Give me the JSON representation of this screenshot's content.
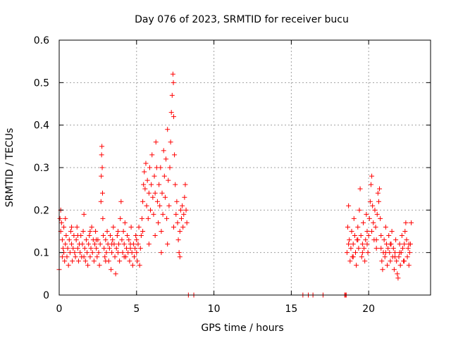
{
  "chart_data": {
    "type": "scatter",
    "title": "Day 076 of 2023, SRMTID for receiver bucu",
    "xlabel": "GPS time / hours",
    "ylabel": "SRMTID / TECUs",
    "xlim": [
      0,
      24
    ],
    "ylim": [
      0,
      0.6
    ],
    "xticks": [
      0,
      5,
      10,
      15,
      20
    ],
    "yticks": [
      0,
      0.1,
      0.2,
      0.3,
      0.4,
      0.5,
      0.6
    ],
    "xtick_labels": [
      "0",
      "5",
      "10",
      "15",
      "20"
    ],
    "ytick_labels": [
      "0",
      "0.1",
      "0.2",
      "0.3",
      "0.4",
      "0.5",
      "0.6"
    ],
    "grid": true,
    "marker": "+",
    "color": "#ff0000",
    "series": [
      {
        "name": "bucu",
        "points": [
          [
            0.0,
            0.06
          ],
          [
            0.05,
            0.18
          ],
          [
            0.1,
            0.15
          ],
          [
            0.1,
            0.2
          ],
          [
            0.15,
            0.17
          ],
          [
            0.2,
            0.13
          ],
          [
            0.2,
            0.09
          ],
          [
            0.25,
            0.11
          ],
          [
            0.3,
            0.16
          ],
          [
            0.3,
            0.1
          ],
          [
            0.35,
            0.08
          ],
          [
            0.4,
            0.12
          ],
          [
            0.45,
            0.14
          ],
          [
            0.5,
            0.09
          ],
          [
            0.55,
            0.11
          ],
          [
            0.6,
            0.07
          ],
          [
            0.65,
            0.13
          ],
          [
            0.7,
            0.1
          ],
          [
            0.75,
            0.15
          ],
          [
            0.8,
            0.12
          ],
          [
            0.85,
            0.08
          ],
          [
            0.9,
            0.11
          ],
          [
            0.95,
            0.14
          ],
          [
            1.0,
            0.1
          ],
          [
            1.05,
            0.09
          ],
          [
            1.1,
            0.13
          ],
          [
            1.15,
            0.16
          ],
          [
            1.2,
            0.11
          ],
          [
            1.25,
            0.08
          ],
          [
            1.3,
            0.12
          ],
          [
            1.35,
            0.1
          ],
          [
            1.4,
            0.14
          ],
          [
            1.45,
            0.09
          ],
          [
            1.5,
            0.12
          ],
          [
            1.55,
            0.15
          ],
          [
            1.6,
            0.19
          ],
          [
            1.65,
            0.11
          ],
          [
            1.7,
            0.08
          ],
          [
            1.75,
            0.13
          ],
          [
            1.8,
            0.1
          ],
          [
            1.85,
            0.07
          ],
          [
            1.9,
            0.12
          ],
          [
            1.95,
            0.14
          ],
          [
            2.0,
            0.09
          ],
          [
            2.05,
            0.11
          ],
          [
            2.1,
            0.16
          ],
          [
            2.15,
            0.1
          ],
          [
            2.2,
            0.13
          ],
          [
            2.25,
            0.08
          ],
          [
            2.3,
            0.12
          ],
          [
            2.35,
            0.15
          ],
          [
            2.4,
            0.11
          ],
          [
            2.45,
            0.09
          ],
          [
            2.5,
            0.13
          ],
          [
            2.55,
            0.1
          ],
          [
            2.6,
            0.07
          ],
          [
            2.65,
            0.12
          ],
          [
            2.7,
            0.22
          ],
          [
            2.72,
            0.28
          ],
          [
            2.74,
            0.33
          ],
          [
            2.76,
            0.35
          ],
          [
            2.78,
            0.3
          ],
          [
            2.8,
            0.24
          ],
          [
            2.82,
            0.18
          ],
          [
            2.85,
            0.14
          ],
          [
            2.9,
            0.11
          ],
          [
            2.95,
            0.09
          ],
          [
            3.0,
            0.13
          ],
          [
            3.05,
            0.1
          ],
          [
            3.1,
            0.15
          ],
          [
            3.15,
            0.12
          ],
          [
            3.2,
            0.08
          ],
          [
            3.25,
            0.11
          ],
          [
            3.3,
            0.14
          ],
          [
            3.35,
            0.06
          ],
          [
            3.4,
            0.1
          ],
          [
            3.45,
            0.13
          ],
          [
            3.5,
            0.16
          ],
          [
            3.55,
            0.12
          ],
          [
            3.6,
            0.09
          ],
          [
            3.65,
            0.05
          ],
          [
            3.7,
            0.11
          ],
          [
            3.75,
            0.14
          ],
          [
            3.8,
            0.1
          ],
          [
            3.85,
            0.12
          ],
          [
            3.9,
            0.08
          ],
          [
            3.95,
            0.18
          ],
          [
            4.0,
            0.22
          ],
          [
            4.05,
            0.13
          ],
          [
            4.1,
            0.1
          ],
          [
            4.15,
            0.15
          ],
          [
            4.2,
            0.12
          ],
          [
            4.25,
            0.17
          ],
          [
            4.3,
            0.09
          ],
          [
            4.35,
            0.11
          ],
          [
            4.4,
            0.14
          ],
          [
            4.45,
            0.1
          ],
          [
            4.5,
            0.13
          ],
          [
            4.55,
            0.08
          ],
          [
            4.6,
            0.12
          ],
          [
            4.65,
            0.16
          ],
          [
            4.7,
            0.1
          ],
          [
            4.75,
            0.07
          ],
          [
            4.8,
            0.12
          ],
          [
            4.85,
            0.09
          ],
          [
            4.9,
            0.11
          ],
          [
            4.95,
            0.14
          ],
          [
            5.0,
            0.1
          ],
          [
            5.05,
            0.08
          ],
          [
            5.1,
            0.12
          ],
          [
            5.15,
            0.16
          ],
          [
            5.2,
            0.07
          ],
          [
            5.25,
            0.11
          ],
          [
            5.3,
            0.14
          ],
          [
            5.35,
            0.18
          ],
          [
            5.4,
            0.22
          ],
          [
            5.45,
            0.26
          ],
          [
            5.5,
            0.29
          ],
          [
            5.55,
            0.25
          ],
          [
            5.6,
            0.31
          ],
          [
            5.65,
            0.21
          ],
          [
            5.7,
            0.27
          ],
          [
            5.75,
            0.18
          ],
          [
            5.8,
            0.24
          ],
          [
            5.85,
            0.3
          ],
          [
            5.9,
            0.2
          ],
          [
            5.95,
            0.26
          ],
          [
            6.0,
            0.33
          ],
          [
            6.05,
            0.23
          ],
          [
            6.1,
            0.19
          ],
          [
            6.15,
            0.28
          ],
          [
            6.2,
            0.24
          ],
          [
            6.25,
            0.36
          ],
          [
            6.3,
            0.3
          ],
          [
            6.35,
            0.22
          ],
          [
            6.4,
            0.17
          ],
          [
            6.45,
            0.26
          ],
          [
            6.5,
            0.21
          ],
          [
            6.55,
            0.3
          ],
          [
            6.6,
            0.15
          ],
          [
            6.65,
            0.24
          ],
          [
            6.7,
            0.19
          ],
          [
            6.75,
            0.34
          ],
          [
            6.8,
            0.28
          ],
          [
            6.85,
            0.23
          ],
          [
            6.9,
            0.32
          ],
          [
            6.95,
            0.18
          ],
          [
            7.0,
            0.39
          ],
          [
            7.05,
            0.27
          ],
          [
            7.1,
            0.21
          ],
          [
            7.15,
            0.3
          ],
          [
            7.2,
            0.36
          ],
          [
            7.25,
            0.43
          ],
          [
            7.3,
            0.47
          ],
          [
            7.35,
            0.52
          ],
          [
            7.38,
            0.5
          ],
          [
            7.4,
            0.42
          ],
          [
            7.45,
            0.33
          ],
          [
            7.5,
            0.26
          ],
          [
            7.55,
            0.19
          ],
          [
            7.6,
            0.22
          ],
          [
            7.65,
            0.17
          ],
          [
            7.7,
            0.13
          ],
          [
            7.75,
            0.1
          ],
          [
            7.8,
            0.15
          ],
          [
            7.85,
            0.2
          ],
          [
            7.9,
            0.18
          ],
          [
            7.95,
            0.21
          ],
          [
            8.0,
            0.16
          ],
          [
            8.05,
            0.19
          ],
          [
            8.1,
            0.23
          ],
          [
            8.15,
            0.26
          ],
          [
            8.2,
            0.2
          ],
          [
            8.25,
            0.17
          ],
          [
            0.4,
            0.18
          ],
          [
            0.8,
            0.16
          ],
          [
            1.2,
            0.14
          ],
          [
            1.6,
            0.09
          ],
          [
            2.0,
            0.15
          ],
          [
            2.4,
            0.13
          ],
          [
            3.0,
            0.08
          ],
          [
            3.4,
            0.12
          ],
          [
            3.8,
            0.15
          ],
          [
            4.2,
            0.09
          ],
          [
            4.6,
            0.11
          ],
          [
            5.0,
            0.13
          ],
          [
            5.4,
            0.15
          ],
          [
            5.8,
            0.12
          ],
          [
            6.2,
            0.14
          ],
          [
            6.6,
            0.1
          ],
          [
            7.0,
            0.12
          ],
          [
            7.4,
            0.16
          ],
          [
            7.8,
            0.09
          ],
          [
            18.6,
            0.1
          ],
          [
            18.65,
            0.16
          ],
          [
            18.7,
            0.21
          ],
          [
            18.75,
            0.13
          ],
          [
            18.8,
            0.08
          ],
          [
            18.85,
            0.11
          ],
          [
            18.9,
            0.15
          ],
          [
            18.95,
            0.09
          ],
          [
            19.0,
            0.12
          ],
          [
            19.05,
            0.18
          ],
          [
            19.1,
            0.14
          ],
          [
            19.15,
            0.1
          ],
          [
            19.2,
            0.07
          ],
          [
            19.25,
            0.13
          ],
          [
            19.3,
            0.16
          ],
          [
            19.35,
            0.11
          ],
          [
            19.4,
            0.2
          ],
          [
            19.45,
            0.25
          ],
          [
            19.5,
            0.14
          ],
          [
            19.55,
            0.09
          ],
          [
            19.6,
            0.12
          ],
          [
            19.65,
            0.17
          ],
          [
            19.7,
            0.11
          ],
          [
            19.75,
            0.08
          ],
          [
            19.8,
            0.13
          ],
          [
            19.85,
            0.19
          ],
          [
            19.9,
            0.15
          ],
          [
            19.95,
            0.1
          ],
          [
            20.0,
            0.14
          ],
          [
            20.05,
            0.18
          ],
          [
            20.1,
            0.22
          ],
          [
            20.15,
            0.26
          ],
          [
            20.2,
            0.28
          ],
          [
            20.25,
            0.21
          ],
          [
            20.3,
            0.17
          ],
          [
            20.35,
            0.13
          ],
          [
            20.4,
            0.2
          ],
          [
            20.45,
            0.16
          ],
          [
            20.5,
            0.11
          ],
          [
            20.55,
            0.19
          ],
          [
            20.6,
            0.24
          ],
          [
            20.65,
            0.22
          ],
          [
            20.7,
            0.25
          ],
          [
            20.75,
            0.18
          ],
          [
            20.8,
            0.14
          ],
          [
            20.85,
            0.08
          ],
          [
            20.9,
            0.06
          ],
          [
            20.95,
            0.1
          ],
          [
            21.0,
            0.13
          ],
          [
            21.05,
            0.09
          ],
          [
            21.1,
            0.16
          ],
          [
            21.15,
            0.12
          ],
          [
            21.2,
            0.07
          ],
          [
            21.25,
            0.11
          ],
          [
            21.3,
            0.14
          ],
          [
            21.35,
            0.1
          ],
          [
            21.4,
            0.08
          ],
          [
            21.45,
            0.12
          ],
          [
            21.5,
            0.15
          ],
          [
            21.55,
            0.09
          ],
          [
            21.6,
            0.11
          ],
          [
            21.65,
            0.06
          ],
          [
            21.7,
            0.1
          ],
          [
            21.75,
            0.13
          ],
          [
            21.8,
            0.08
          ],
          [
            21.85,
            0.05
          ],
          [
            21.9,
            0.04
          ],
          [
            21.95,
            0.09
          ],
          [
            22.0,
            0.12
          ],
          [
            22.05,
            0.07
          ],
          [
            22.1,
            0.1
          ],
          [
            22.15,
            0.14
          ],
          [
            22.2,
            0.11
          ],
          [
            22.25,
            0.08
          ],
          [
            22.3,
            0.12
          ],
          [
            22.35,
            0.15
          ],
          [
            22.4,
            0.17
          ],
          [
            22.45,
            0.13
          ],
          [
            22.5,
            0.09
          ],
          [
            22.55,
            0.11
          ],
          [
            22.6,
            0.07
          ],
          [
            22.65,
            0.1
          ],
          [
            22.7,
            0.12
          ],
          [
            22.75,
            0.17
          ],
          [
            18.7,
            0.12
          ],
          [
            19.0,
            0.09
          ],
          [
            19.3,
            0.13
          ],
          [
            19.6,
            0.1
          ],
          [
            19.9,
            0.12
          ],
          [
            20.2,
            0.15
          ],
          [
            20.5,
            0.13
          ],
          [
            20.8,
            0.11
          ],
          [
            21.1,
            0.1
          ],
          [
            21.4,
            0.12
          ],
          [
            21.7,
            0.09
          ],
          [
            22.0,
            0.1
          ],
          [
            22.3,
            0.08
          ],
          [
            22.6,
            0.12
          ],
          [
            8.35,
            0.0
          ],
          [
            8.7,
            0.0
          ],
          [
            15.75,
            0.0
          ],
          [
            16.1,
            0.0
          ],
          [
            16.4,
            0.0
          ],
          [
            17.05,
            0.0
          ],
          [
            18.45,
            0.0
          ],
          [
            18.5,
            0.0
          ],
          [
            18.55,
            0.0
          ]
        ]
      }
    ]
  }
}
